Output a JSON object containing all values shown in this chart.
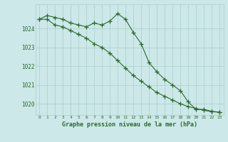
{
  "line1": [
    1024.5,
    1024.7,
    1024.6,
    1024.5,
    1024.3,
    1024.2,
    1024.1,
    1024.3,
    1024.2,
    1024.4,
    1024.8,
    1024.5,
    1023.8,
    1023.2,
    1022.2,
    1021.7,
    1021.3,
    1021.0,
    1020.7,
    1020.1,
    1019.7,
    1019.7,
    1019.6,
    1019.55
  ],
  "line2": [
    1024.5,
    1024.5,
    1024.2,
    1024.1,
    1023.9,
    1023.7,
    1023.5,
    1023.2,
    1023.0,
    1022.7,
    1022.3,
    1021.9,
    1021.5,
    1021.2,
    1020.9,
    1020.6,
    1020.4,
    1020.2,
    1020.0,
    1019.85,
    1019.75,
    1019.65,
    1019.58,
    1019.55
  ],
  "x": [
    0,
    1,
    2,
    3,
    4,
    5,
    6,
    7,
    8,
    9,
    10,
    11,
    12,
    13,
    14,
    15,
    16,
    17,
    18,
    19,
    20,
    21,
    22,
    23
  ],
  "xlabel": "Graphe pression niveau de la mer (hPa)",
  "ylim": [
    1019.4,
    1025.3
  ],
  "yticks": [
    1020,
    1021,
    1022,
    1023,
    1024
  ],
  "line_color": "#2d6a2d",
  "bg_color": "#cce8e8",
  "grid_color": "#aacece",
  "marker": "+",
  "markersize": 4,
  "linewidth": 0.8
}
